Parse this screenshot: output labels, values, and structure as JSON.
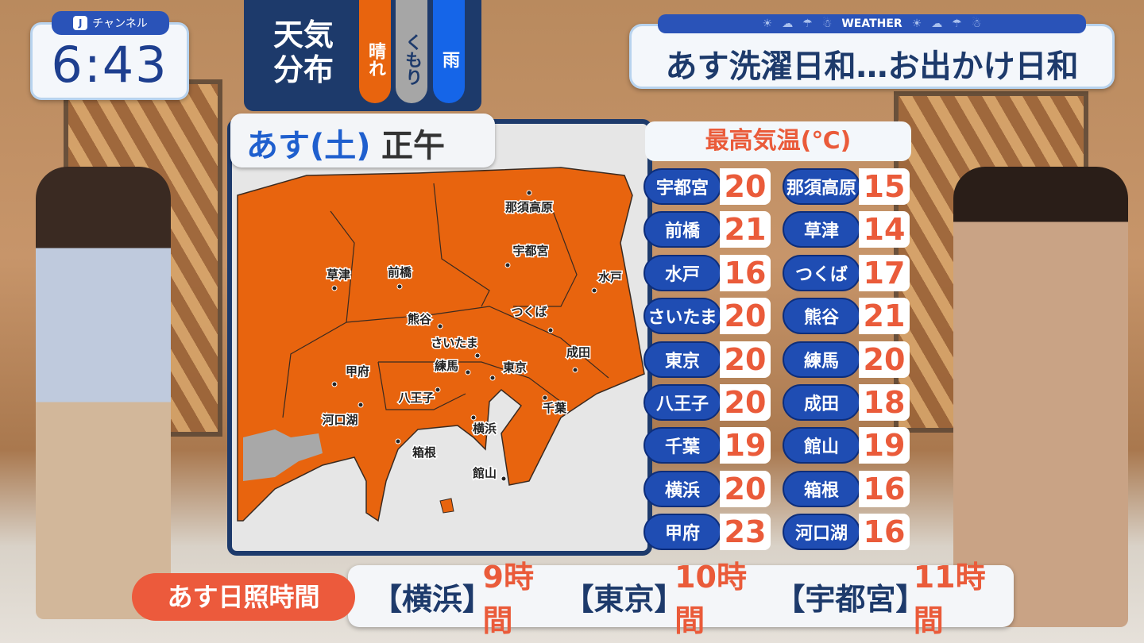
{
  "clock": {
    "channel": "チャンネル",
    "time": "6:43"
  },
  "legend": {
    "title_line1": "天気",
    "title_line2": "分布",
    "items": [
      {
        "label": "晴れ",
        "color": "#e8640e"
      },
      {
        "label": "くもり",
        "color": "#a6a6a6"
      },
      {
        "label": "雨",
        "color": "#1565e8"
      }
    ]
  },
  "date": {
    "day": "あす(土)",
    "time": "正午"
  },
  "headline": {
    "tab": "WEATHER",
    "text": "あす洗濯日和…お出かけ日和"
  },
  "map": {
    "cities": [
      "那須高原",
      "宇都宮",
      "水戸",
      "草津",
      "前橋",
      "熊谷",
      "つくば",
      "さいたま",
      "練馬",
      "東京",
      "成田",
      "甲府",
      "八王子",
      "河口湖",
      "千葉",
      "横浜",
      "箱根",
      "館山"
    ]
  },
  "temps": {
    "header": "最高気温(℃)",
    "left": [
      {
        "name": "宇都宮",
        "value": "20"
      },
      {
        "name": "前橋",
        "value": "21"
      },
      {
        "name": "水戸",
        "value": "16"
      },
      {
        "name": "さいたま",
        "value": "20"
      },
      {
        "name": "東京",
        "value": "20"
      },
      {
        "name": "八王子",
        "value": "20"
      },
      {
        "name": "千葉",
        "value": "19"
      },
      {
        "name": "横浜",
        "value": "20"
      },
      {
        "name": "甲府",
        "value": "23"
      }
    ],
    "right": [
      {
        "name": "那須高原",
        "value": "15"
      },
      {
        "name": "草津",
        "value": "14"
      },
      {
        "name": "つくば",
        "value": "17"
      },
      {
        "name": "熊谷",
        "value": "21"
      },
      {
        "name": "練馬",
        "value": "20"
      },
      {
        "name": "成田",
        "value": "18"
      },
      {
        "name": "館山",
        "value": "19"
      },
      {
        "name": "箱根",
        "value": "16"
      },
      {
        "name": "河口湖",
        "value": "16"
      }
    ]
  },
  "sunshine": {
    "label": "あす日照時間",
    "items": [
      {
        "loc": "【横浜】",
        "hours": "9時間"
      },
      {
        "loc": "【東京】",
        "hours": "10時間"
      },
      {
        "loc": "【宇都宮】",
        "hours": "11時間"
      }
    ]
  }
}
